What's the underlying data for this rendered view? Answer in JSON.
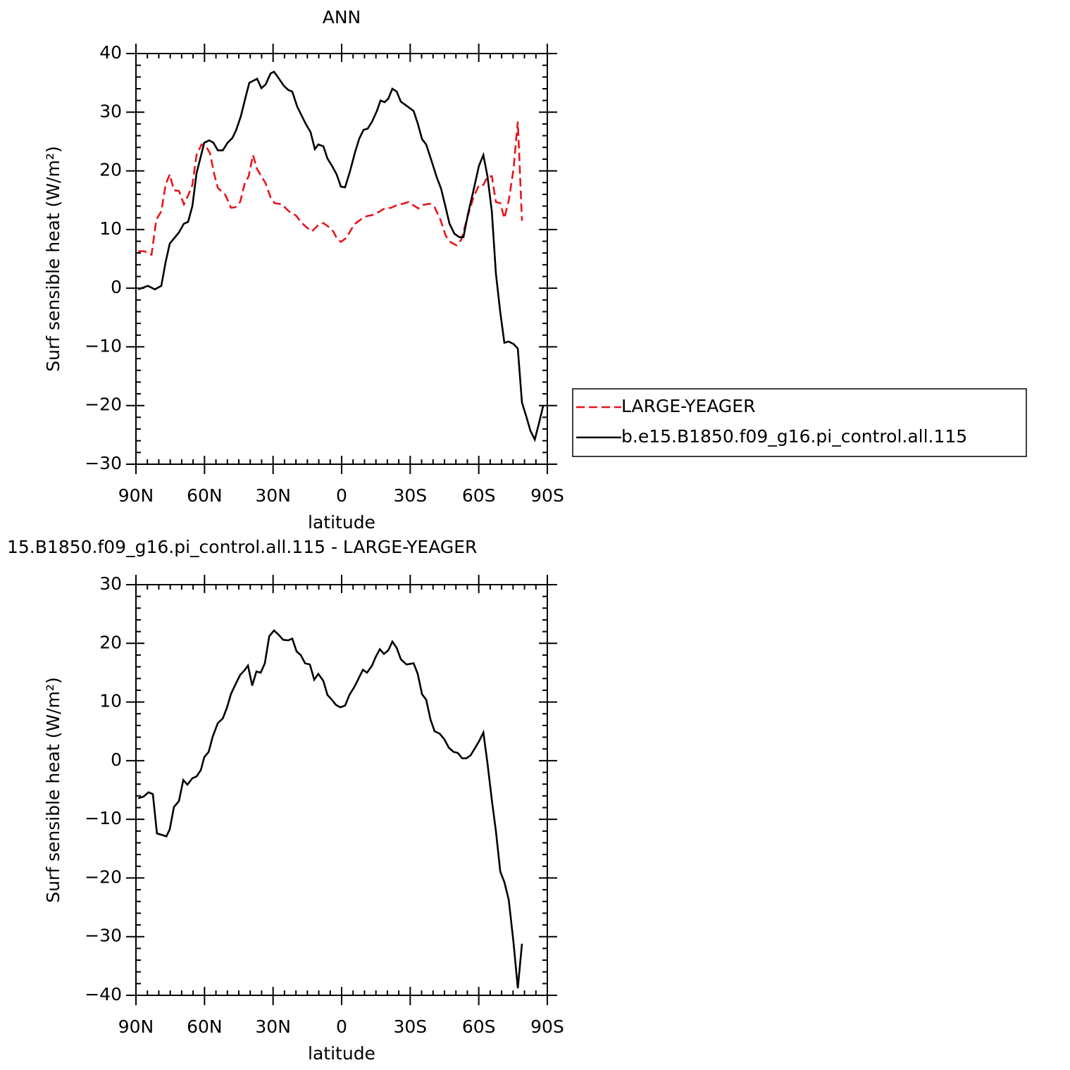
{
  "chart_data": [
    {
      "type": "line",
      "title": "ANN",
      "xlabel": "latitude",
      "ylabel": "Surf sensible heat (W/m²)",
      "xlim": [
        90,
        -90
      ],
      "xticks": [
        {
          "value": 90,
          "label": "90N"
        },
        {
          "value": 60,
          "label": "60N"
        },
        {
          "value": 30,
          "label": "30N"
        },
        0,
        {
          "value": -30,
          "label": "30S"
        },
        {
          "value": -60,
          "label": "60S"
        },
        {
          "value": -90,
          "label": "90S"
        }
      ],
      "ylim": [
        -30,
        40
      ],
      "yticks": [
        -30,
        -20,
        -10,
        0,
        10,
        20,
        30,
        40
      ],
      "legend": "outside right",
      "series": [
        {
          "name": "LARGE-YEAGER",
          "color": "#e8141c",
          "dash": true,
          "x": [
            89,
            86.3,
            83.2,
            81.1,
            78.9,
            77,
            75.2,
            73.4,
            71.2,
            69,
            67.2,
            65.3,
            63.5,
            61.3,
            59.5,
            57.6,
            55.8,
            54.2,
            50.9,
            48.4,
            46.5,
            44.4,
            42.5,
            40.7,
            38.8,
            37,
            33.3,
            31.1,
            29.3,
            26.2,
            23.1,
            20,
            17.6,
            15.1,
            12.9,
            10.2,
            8,
            5.8,
            3.7,
            2.1,
            0.3,
            -2.2,
            -3.7,
            -5.6,
            -8.3,
            -11.1,
            -13.9,
            -16.3,
            -18.8,
            -21.6,
            -24.4,
            -26.8,
            -29.3,
            -31.5,
            -33.6,
            -35.8,
            -38.5,
            -40.7,
            -43.2,
            -45.6,
            -47.8,
            -50.3,
            -52.4,
            -54.9,
            -57.7,
            -60.1,
            -62,
            -63.8,
            -65.7,
            -67.5,
            -69.4,
            -71.2,
            -73.1,
            -75.2,
            -77.1,
            -78.9
          ],
          "values": [
            6.3,
            6.3,
            5.7,
            11.7,
            13.1,
            17.7,
            19.4,
            16.7,
            16.6,
            14.3,
            15.8,
            17.6,
            22.7,
            24.5,
            24.3,
            23,
            19.5,
            17.1,
            15.9,
            13.7,
            13.8,
            14.7,
            17.7,
            19.1,
            22.7,
            20.3,
            17.9,
            15.5,
            14.5,
            14.3,
            13.1,
            12.4,
            11.2,
            10.3,
            9.7,
            10.8,
            11.1,
            10.5,
            9.7,
            8.5,
            7.9,
            8.6,
            9.7,
            10.9,
            11.7,
            12.3,
            12.5,
            13,
            13.6,
            13.7,
            14.2,
            14.4,
            14.7,
            14.1,
            13.6,
            14.2,
            14.4,
            13.8,
            11.7,
            8.9,
            7.8,
            7.3,
            8.3,
            11.9,
            15.5,
            17.6,
            17.6,
            19,
            19.1,
            14.7,
            14.5,
            11.9,
            14.9,
            20.3,
            28.4,
            11.5
          ]
        },
        {
          "name": "b.e15.B1850.f09_g16.pi_control.all.115",
          "color": "#000000",
          "dash": false,
          "x": [
            89,
            84.8,
            81.7,
            78.9,
            77,
            75.2,
            71.2,
            69,
            67.2,
            65.3,
            63.5,
            60.1,
            57.9,
            56.1,
            54.2,
            52,
            49.9,
            47.8,
            46.2,
            44.1,
            42.2,
            40.4,
            37,
            35.1,
            33.3,
            31.1,
            29.6,
            27.4,
            25.3,
            23.4,
            21.6,
            19.4,
            15.7,
            13.6,
            11.7,
            10.2,
            8,
            6.2,
            4,
            2.2,
            0.3,
            -1.5,
            -3.7,
            -5.9,
            -7.7,
            -9.6,
            -11.4,
            -13.3,
            -15.4,
            -17,
            -18.8,
            -20.4,
            -22.2,
            -24.1,
            -25.9,
            -28.4,
            -31.5,
            -33.3,
            -35.2,
            -37,
            -39.5,
            -41.6,
            -43.5,
            -45.3,
            -47.2,
            -49.3,
            -51.5,
            -53.3,
            -55.2,
            -57.7,
            -60.1,
            -62,
            -63.8,
            -65.7,
            -67.5,
            -69.4,
            -71.2,
            -73.1,
            -75.2,
            -77.1,
            -78.9,
            -80.8,
            -82.6,
            -84.5,
            -86.3,
            -88.2
          ],
          "values": [
            -0.2,
            0.4,
            -0.2,
            0.4,
            4.5,
            7.6,
            9.5,
            11,
            11.3,
            14,
            19.6,
            24.8,
            25.2,
            24.8,
            23.5,
            23.5,
            24.8,
            25.6,
            26.9,
            29.3,
            32.3,
            35,
            35.7,
            34.1,
            34.7,
            36.6,
            36.9,
            35.7,
            34.5,
            33.8,
            33.5,
            30.9,
            28,
            26.6,
            23.7,
            24.5,
            24.2,
            22.1,
            20.7,
            19.4,
            17.3,
            17.2,
            20,
            23.2,
            25.5,
            27,
            27.2,
            28.4,
            30.2,
            32,
            31.7,
            32.3,
            34,
            33.5,
            31.8,
            31.1,
            30.2,
            28.1,
            25.4,
            24.5,
            21.5,
            18.9,
            17,
            14.1,
            11,
            9.3,
            8.7,
            8.7,
            12.5,
            16.7,
            20.9,
            22.7,
            19.1,
            13.1,
            2.5,
            -4.1,
            -9.3,
            -9.1,
            -9.5,
            -10.3,
            -19.5,
            -21.9,
            -24.3,
            -25.8,
            -23.1,
            -20
          ]
        }
      ]
    },
    {
      "type": "line",
      "title": "15.B1850.f09_g16.pi_control.all.115 - LARGE-YEAGER",
      "xlabel": "latitude",
      "ylabel": "Surf sensible heat (W/m²)",
      "xlim": [
        90,
        -90
      ],
      "xticks": [
        {
          "value": 90,
          "label": "90N"
        },
        {
          "value": 60,
          "label": "60N"
        },
        {
          "value": 30,
          "label": "30N"
        },
        0,
        {
          "value": -30,
          "label": "30S"
        },
        {
          "value": -60,
          "label": "60S"
        },
        {
          "value": -90,
          "label": "90S"
        }
      ],
      "ylim": [
        -40,
        30
      ],
      "yticks": [
        -40,
        -30,
        -20,
        -10,
        0,
        10,
        20,
        30
      ],
      "series": [
        {
          "color": "#000000",
          "dash": false,
          "x": [
            89,
            86.6,
            84.5,
            82.6,
            80.8,
            76.7,
            75.2,
            73.4,
            71.2,
            69.3,
            67.5,
            65.3,
            63.5,
            61.6,
            60.1,
            58.2,
            56.4,
            54.2,
            52,
            50.2,
            48.4,
            46.2,
            44.4,
            42.5,
            41,
            39.1,
            37.3,
            35.4,
            33.6,
            31.7,
            29.6,
            27.4,
            25.6,
            23.4,
            21.6,
            19.7,
            17.9,
            16,
            13.9,
            12,
            10.2,
            8,
            6.2,
            4.3,
            2.5,
            0.6,
            -1.5,
            -3.4,
            -5.6,
            -7.4,
            -9.3,
            -11.1,
            -13.3,
            -14.8,
            -16.7,
            -18.5,
            -20.4,
            -22.2,
            -24.1,
            -25.9,
            -28.4,
            -31.5,
            -33.3,
            -35.2,
            -37,
            -38.9,
            -40.7,
            -42.9,
            -45,
            -46.9,
            -49,
            -50.9,
            -52.7,
            -54.6,
            -56.4,
            -58.6,
            -60.1,
            -62,
            -63.8,
            -65.7,
            -67.5,
            -69.4,
            -71.2,
            -73.1,
            -75.2,
            -77.1,
            -78.9
          ],
          "values": [
            -6.4,
            -6.1,
            -5.4,
            -5.7,
            -12.4,
            -12.9,
            -11.7,
            -7.9,
            -6.9,
            -3.3,
            -4.1,
            -3,
            -2.7,
            -1.6,
            0.6,
            1.5,
            4.1,
            6.4,
            7.2,
            9,
            11.4,
            13.2,
            14.6,
            15.4,
            16.2,
            12.8,
            15.2,
            15,
            16.6,
            21.2,
            22.2,
            21.4,
            20.6,
            20.5,
            20.8,
            18.6,
            18,
            16.6,
            16.4,
            13.8,
            14.8,
            13.6,
            11.2,
            10.4,
            9.5,
            9.1,
            9.4,
            11.2,
            12.6,
            14,
            15.5,
            15,
            16.2,
            17.6,
            19,
            18.2,
            18.8,
            20.3,
            19.2,
            17.3,
            16.4,
            16.6,
            14.8,
            11.3,
            10.4,
            7,
            5,
            4.6,
            3.6,
            2.2,
            1.5,
            1.3,
            0.4,
            0.4,
            0.9,
            2.3,
            3.3,
            4.8,
            -0.4,
            -6.7,
            -12,
            -18.9,
            -20.7,
            -23.7,
            -31,
            -38.8,
            -31.2
          ]
        }
      ]
    }
  ]
}
